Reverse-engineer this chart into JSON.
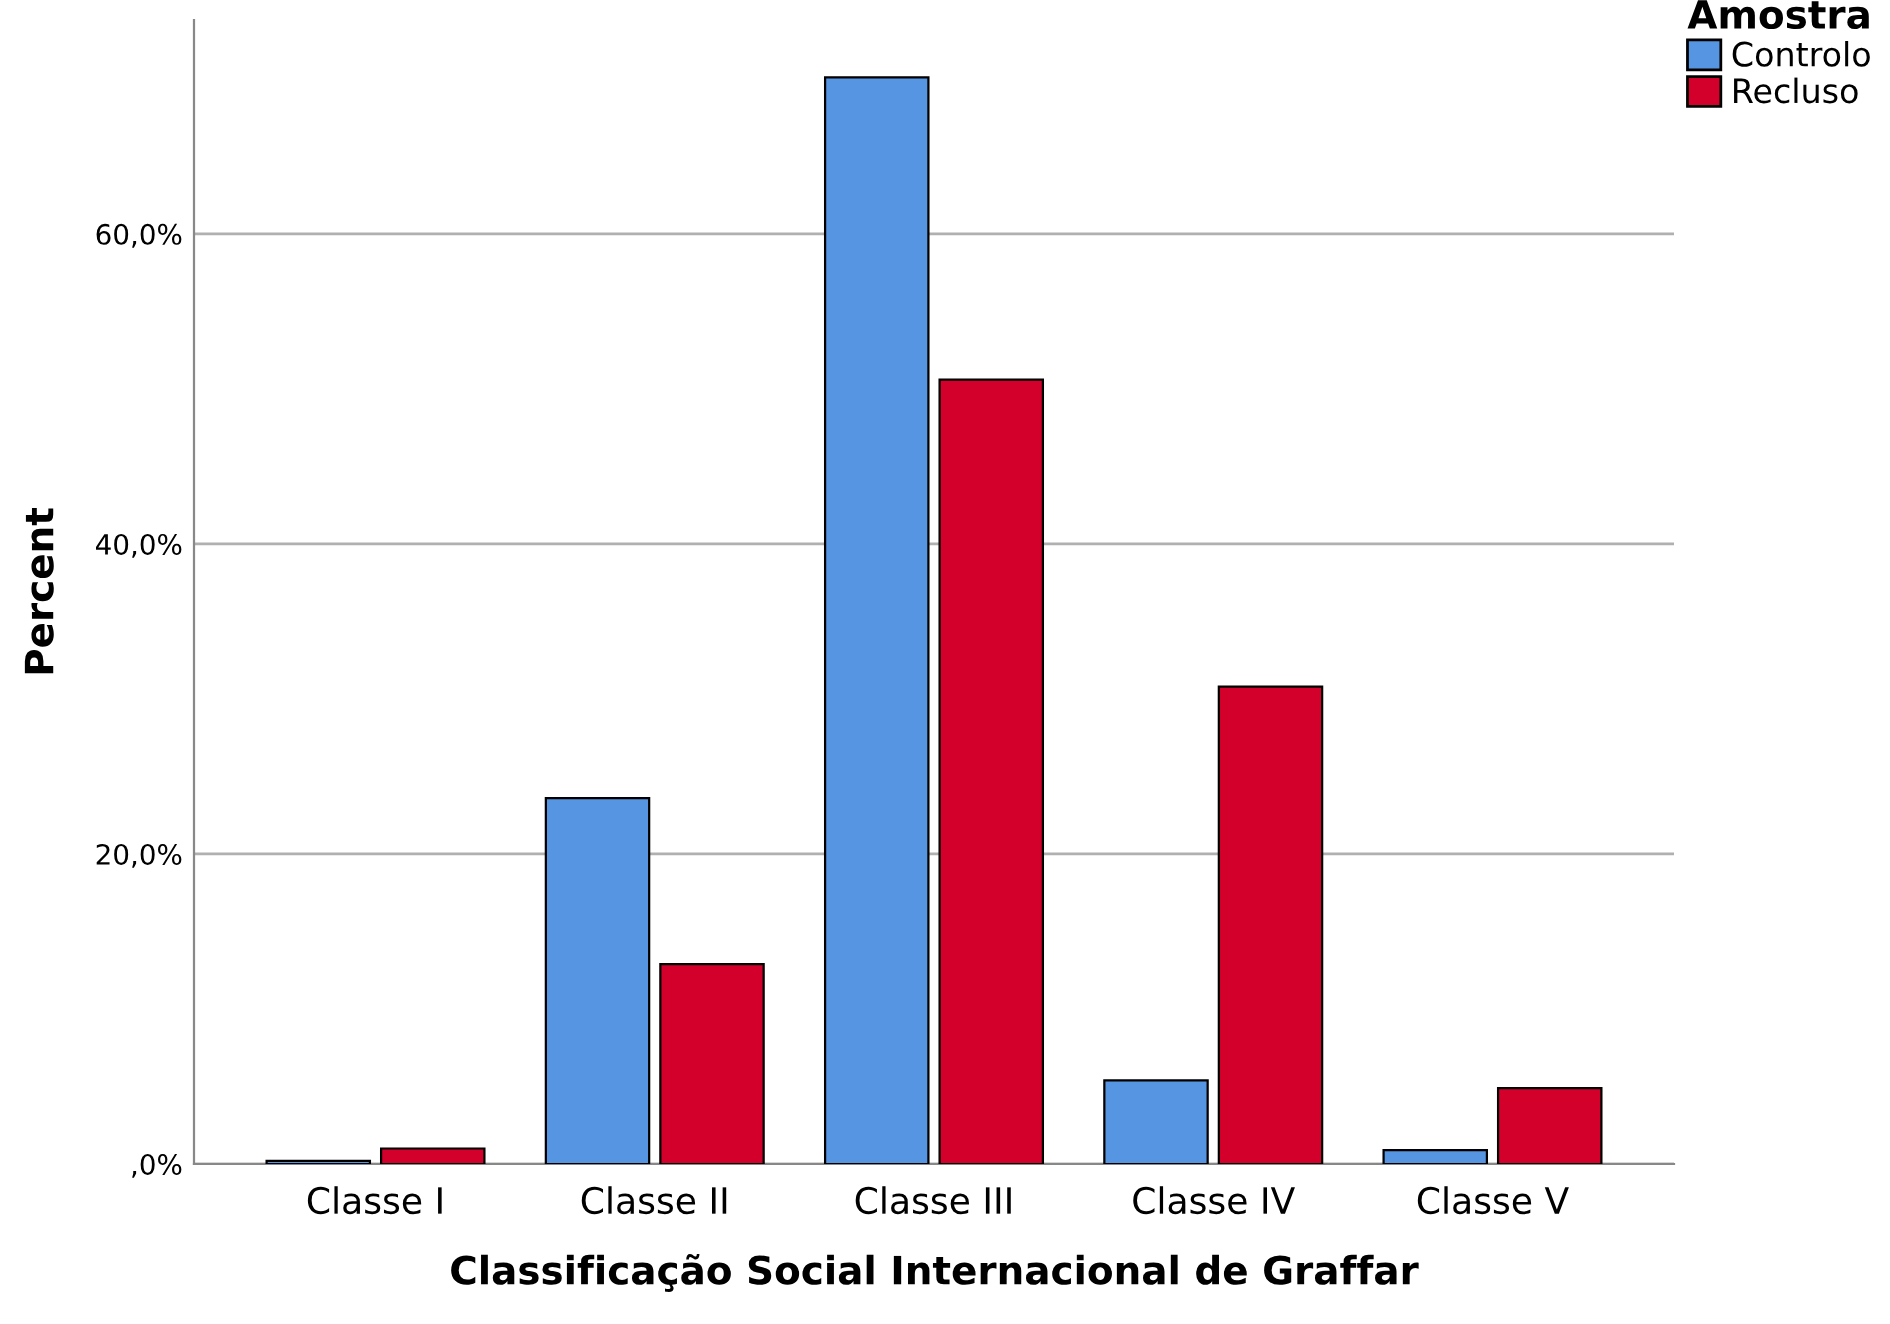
{
  "chart_data": {
    "type": "bar",
    "xlabel": "Classificação Social Internacional de Graffar",
    "ylabel": "Percent",
    "legend_title": "Amostra",
    "categories": [
      "Classe I",
      "Classe II",
      "Classe III",
      "Classe IV",
      "Classe V"
    ],
    "series": [
      {
        "name": "Controlo",
        "color": "#5595e2",
        "values": [
          0.2,
          23.6,
          70.1,
          5.4,
          0.9
        ]
      },
      {
        "name": "Recluso",
        "color": "#d4002c",
        "values": [
          1.0,
          12.9,
          50.6,
          30.8,
          4.9
        ]
      }
    ],
    "ylim": [
      0,
      73.8
    ],
    "yticks": [
      {
        "value": 0,
        "label": ",0%"
      },
      {
        "value": 20,
        "label": "20,0%"
      },
      {
        "value": 40,
        "label": "40,0%"
      },
      {
        "value": 60,
        "label": "60,0%"
      }
    ],
    "grid": "y",
    "legend": "top right"
  }
}
